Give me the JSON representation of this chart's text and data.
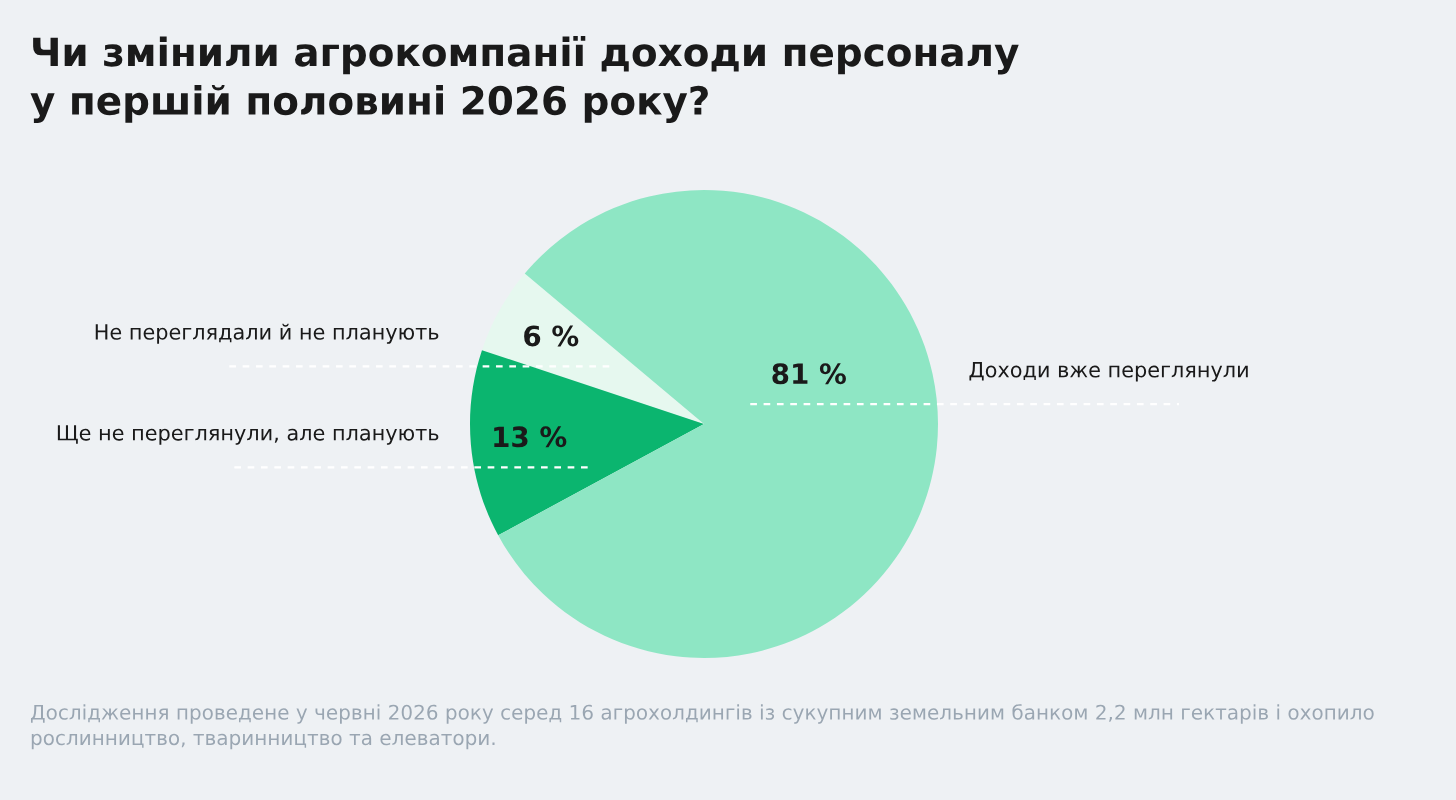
{
  "chart_data": {
    "type": "pie",
    "title": "Чи змінили агрокомпанії доходи персоналу\nу першій половині 2026 року?",
    "categories": [
      "Не переглядали й не планують",
      "Ще не переглянули, але планують",
      "Доходи вже переглянули"
    ],
    "values": [
      6,
      13,
      81
    ],
    "colors": [
      "#e6f8ef",
      "#0bb56f",
      "#8ee6c4"
    ],
    "value_labels": [
      "6 %",
      "13 %",
      "81 %"
    ],
    "annotations": [
      "Дослідження проведене у червні 2026 року серед 16 агрохолдингів із сукупним земельним банком 2,2 млн гектарів і охопило\nрослинництво, тваринництво та елеватори."
    ]
  }
}
